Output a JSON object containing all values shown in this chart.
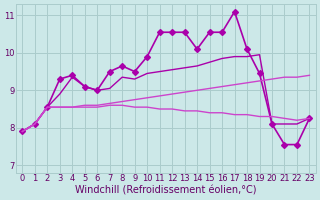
{
  "xlabel": "Windchill (Refroidissement éolien,°C)",
  "ylabel": "",
  "xlim": [
    -0.5,
    23.5
  ],
  "ylim": [
    6.8,
    11.3
  ],
  "yticks": [
    7,
    8,
    9,
    10,
    11
  ],
  "xticks": [
    0,
    1,
    2,
    3,
    4,
    5,
    6,
    7,
    8,
    9,
    10,
    11,
    12,
    13,
    14,
    15,
    16,
    17,
    18,
    19,
    20,
    21,
    22,
    23
  ],
  "bg_color": "#cce8e8",
  "grid_color": "#aacccc",
  "lines": [
    {
      "x": [
        0,
        1,
        2,
        3,
        4,
        5,
        6,
        7,
        8,
        9,
        10,
        11,
        12,
        13,
        14,
        15,
        16,
        17,
        18,
        19,
        20,
        21,
        22,
        23
      ],
      "y": [
        7.9,
        8.1,
        8.55,
        9.3,
        9.4,
        9.1,
        9.0,
        9.5,
        9.65,
        9.5,
        9.9,
        10.55,
        10.55,
        10.55,
        10.1,
        10.55,
        10.55,
        11.1,
        10.1,
        9.45,
        8.1,
        7.55,
        7.55,
        8.25
      ],
      "marker": "D",
      "markersize": 3,
      "linewidth": 1.2,
      "color": "#aa00aa"
    },
    {
      "x": [
        0,
        1,
        2,
        3,
        4,
        5,
        6,
        7,
        8,
        9,
        10,
        11,
        12,
        13,
        14,
        15,
        16,
        17,
        18,
        19,
        20,
        21,
        22,
        23
      ],
      "y": [
        7.9,
        8.1,
        8.55,
        8.9,
        9.35,
        9.1,
        9.0,
        9.05,
        9.35,
        9.3,
        9.45,
        9.5,
        9.55,
        9.6,
        9.65,
        9.75,
        9.85,
        9.9,
        9.9,
        9.95,
        8.1,
        8.1,
        8.1,
        8.25
      ],
      "marker": null,
      "markersize": 0,
      "linewidth": 1.0,
      "color": "#aa00aa"
    },
    {
      "x": [
        0,
        1,
        2,
        3,
        4,
        5,
        6,
        7,
        8,
        9,
        10,
        11,
        12,
        13,
        14,
        15,
        16,
        17,
        18,
        19,
        20,
        21,
        22,
        23
      ],
      "y": [
        7.9,
        8.1,
        8.55,
        8.55,
        8.55,
        8.55,
        8.55,
        8.6,
        8.6,
        8.55,
        8.55,
        8.5,
        8.5,
        8.45,
        8.45,
        8.4,
        8.4,
        8.35,
        8.35,
        8.3,
        8.3,
        8.25,
        8.2,
        8.25
      ],
      "marker": null,
      "markersize": 0,
      "linewidth": 1.0,
      "color": "#cc44cc"
    },
    {
      "x": [
        0,
        1,
        2,
        3,
        4,
        5,
        6,
        7,
        8,
        9,
        10,
        11,
        12,
        13,
        14,
        15,
        16,
        17,
        18,
        19,
        20,
        21,
        22,
        23
      ],
      "y": [
        7.9,
        8.1,
        8.55,
        8.55,
        8.55,
        8.6,
        8.6,
        8.65,
        8.7,
        8.75,
        8.8,
        8.85,
        8.9,
        8.95,
        9.0,
        9.05,
        9.1,
        9.15,
        9.2,
        9.25,
        9.3,
        9.35,
        9.35,
        9.4
      ],
      "marker": null,
      "markersize": 0,
      "linewidth": 1.0,
      "color": "#cc44cc"
    }
  ],
  "text_color": "#660066",
  "tick_fontsize": 6,
  "label_fontsize": 7
}
